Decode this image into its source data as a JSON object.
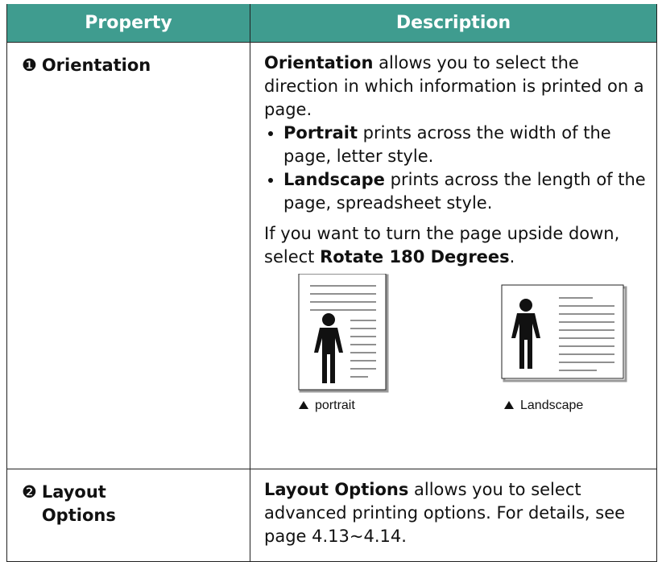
{
  "table": {
    "headers": [
      "Property",
      "Description"
    ],
    "rows": [
      {
        "marker": "❶",
        "property": "Orientation",
        "description": {
          "intro": {
            "bold": "Orientation",
            "text": " allows you to select the direction in which information is printed on a page."
          },
          "bullets": [
            {
              "bold": "Portrait",
              "text": " prints across the width of the page, letter style."
            },
            {
              "bold": "Landscape",
              "text": " prints across the length of the page, spreadsheet style."
            }
          ],
          "note": {
            "text": "If you want to turn the page upside down, select ",
            "bold": "Rotate 180 Degrees",
            "end": "."
          },
          "figure_captions": [
            "portrait",
            "Landscape"
          ]
        }
      },
      {
        "marker": "❷",
        "property": "Layout Options",
        "description": {
          "intro": {
            "bold": "Layout Options",
            "text": " allows you to select advanced printing options. For details, see page 4.13~4.14."
          }
        }
      }
    ]
  }
}
